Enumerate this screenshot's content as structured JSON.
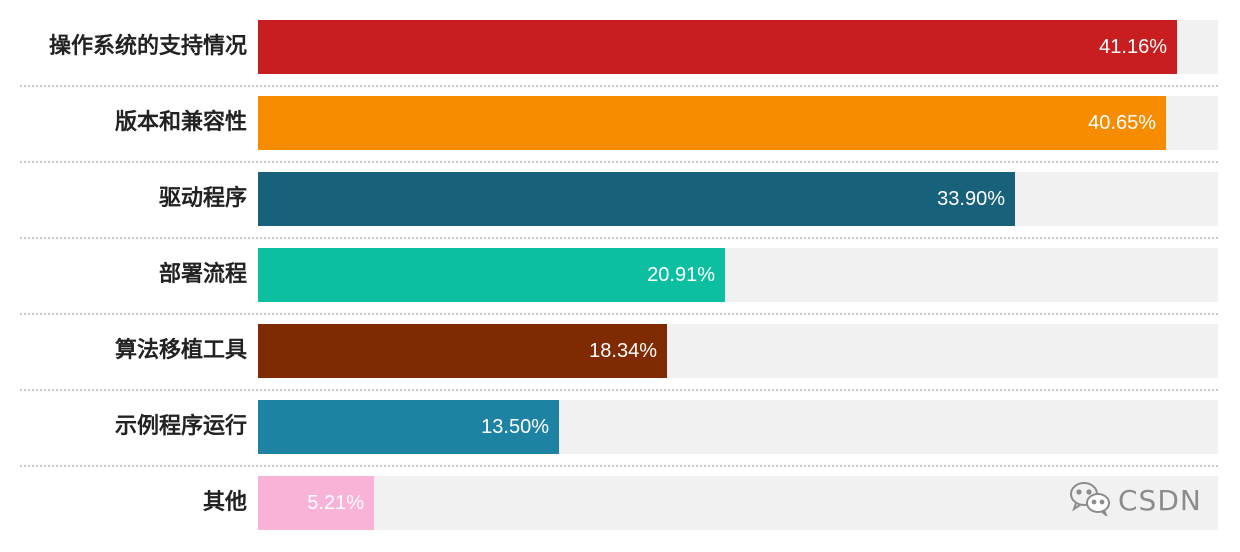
{
  "chart_data": {
    "type": "bar",
    "orientation": "horizontal",
    "categories": [
      "操作系统的支持情况",
      "版本和兼容性",
      "驱动程序",
      "部署流程",
      "算法移植工具",
      "示例程序运行",
      "其他"
    ],
    "values": [
      41.16,
      40.65,
      33.9,
      20.91,
      18.34,
      13.5,
      5.21
    ],
    "value_labels": [
      "41.16%",
      "40.65%",
      "33.90%",
      "20.91%",
      "18.34%",
      "13.50%",
      "5.21%"
    ],
    "colors": [
      "#c81e20",
      "#f78c00",
      "#17617a",
      "#0bbfa0",
      "#7f2a00",
      "#1e82a3",
      "#f8b3d6"
    ],
    "xlim": [
      0,
      43
    ],
    "grid": false,
    "legend": "none"
  },
  "watermark": {
    "text": "CSDN",
    "icon": "wechat-icon"
  }
}
